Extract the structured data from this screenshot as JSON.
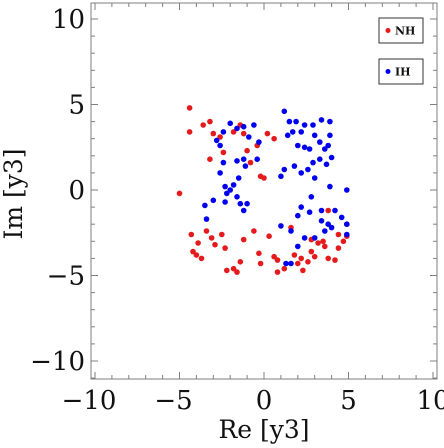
{
  "chart_data": {
    "type": "scatter",
    "xlabel": "Re [y3]",
    "ylabel": "Im [y3]",
    "xlim": [
      -10,
      10
    ],
    "ylim": [
      -11,
      11
    ],
    "xticks": [
      -10,
      -5,
      0,
      5,
      10
    ],
    "yticks": [
      -10,
      -5,
      0,
      5,
      10
    ],
    "xtick_labels": [
      "−10",
      "−5",
      "0",
      "5",
      "10"
    ],
    "ytick_labels": [
      "−10",
      "−5",
      "0",
      "5",
      "10"
    ],
    "grid": false,
    "legend_placement": "top-right",
    "series": [
      {
        "name": "NH",
        "color": "#e41a1c",
        "points": [
          [
            -4.4,
            4.8
          ],
          [
            -4.4,
            3.4
          ],
          [
            -3.6,
            3.8
          ],
          [
            -3.2,
            4.0
          ],
          [
            -3.0,
            3.3
          ],
          [
            -3.2,
            1.8
          ],
          [
            -2.6,
            3.1
          ],
          [
            -2.4,
            2.2
          ],
          [
            -1.8,
            3.4
          ],
          [
            -1.4,
            3.8
          ],
          [
            -1.2,
            3.3
          ],
          [
            -1.0,
            2.3
          ],
          [
            -0.8,
            1.6
          ],
          [
            -0.4,
            2.6
          ],
          [
            -0.2,
            0.8
          ],
          [
            0.0,
            0.7
          ],
          [
            0.6,
            3.0
          ],
          [
            0.2,
            3.3
          ],
          [
            -5.0,
            -0.2
          ],
          [
            -4.3,
            -2.6
          ],
          [
            -3.9,
            -3.1
          ],
          [
            -4.2,
            -3.6
          ],
          [
            -4.0,
            -3.8
          ],
          [
            -3.7,
            -4.0
          ],
          [
            -3.4,
            -2.4
          ],
          [
            -3.1,
            -2.8
          ],
          [
            -2.9,
            -3.2
          ],
          [
            -2.5,
            -2.6
          ],
          [
            -2.3,
            -3.4
          ],
          [
            -2.2,
            -4.7
          ],
          [
            -1.8,
            -4.6
          ],
          [
            -1.6,
            -4.8
          ],
          [
            -1.4,
            -4.2
          ],
          [
            -1.2,
            -2.9
          ],
          [
            -0.6,
            -2.4
          ],
          [
            -0.3,
            -3.7
          ],
          [
            -0.2,
            -4.3
          ],
          [
            0.3,
            -2.7
          ],
          [
            0.6,
            -3.9
          ],
          [
            0.8,
            -4.1
          ],
          [
            0.8,
            -4.8
          ],
          [
            1.2,
            -4.6
          ],
          [
            1.6,
            -2.2
          ],
          [
            1.8,
            -3.8
          ],
          [
            2.0,
            -4.3
          ],
          [
            2.2,
            -4.0
          ],
          [
            2.3,
            -4.7
          ],
          [
            2.6,
            -4.2
          ],
          [
            2.8,
            -3.6
          ],
          [
            3.0,
            -3.9
          ],
          [
            3.2,
            -3.1
          ],
          [
            3.5,
            -3.0
          ],
          [
            3.6,
            -3.3
          ],
          [
            3.8,
            -4.0
          ],
          [
            4.2,
            -4.1
          ],
          [
            4.4,
            -3.4
          ],
          [
            4.4,
            -2.6
          ],
          [
            4.9,
            -2.0
          ],
          [
            4.9,
            -2.7
          ],
          [
            3.8,
            -1.2
          ],
          [
            2.8,
            -2.9
          ],
          [
            4.7,
            -3.0
          ]
        ]
      },
      {
        "name": "IH",
        "color": "#0000ee",
        "points": [
          [
            -2.8,
            2.9
          ],
          [
            -2.6,
            2.6
          ],
          [
            -2.4,
            3.4
          ],
          [
            -2.0,
            3.9
          ],
          [
            -1.6,
            3.6
          ],
          [
            -1.2,
            3.7
          ],
          [
            -0.6,
            3.8
          ],
          [
            -0.9,
            3.1
          ],
          [
            -0.3,
            2.8
          ],
          [
            -0.4,
            1.8
          ],
          [
            -1.2,
            1.8
          ],
          [
            -1.1,
            1.4
          ],
          [
            -1.6,
            1.7
          ],
          [
            -2.4,
            1.6
          ],
          [
            -2.6,
            1.0
          ],
          [
            -2.3,
            0.2
          ],
          [
            -2.0,
            0.0
          ],
          [
            -1.8,
            0.3
          ],
          [
            -1.5,
            0.7
          ],
          [
            -1.6,
            -0.4
          ],
          [
            -1.4,
            -0.8
          ],
          [
            -1.2,
            -1.2
          ],
          [
            -1.0,
            -0.8
          ],
          [
            -2.2,
            -0.2
          ],
          [
            -2.3,
            -0.7
          ],
          [
            -3.0,
            -0.6
          ],
          [
            -3.4,
            -1.7
          ],
          [
            -3.5,
            -0.9
          ],
          [
            1.2,
            4.6
          ],
          [
            1.5,
            4.0
          ],
          [
            1.9,
            4.0
          ],
          [
            2.4,
            3.8
          ],
          [
            2.9,
            3.8
          ],
          [
            3.4,
            4.1
          ],
          [
            3.9,
            4.0
          ],
          [
            1.4,
            3.2
          ],
          [
            1.7,
            3.4
          ],
          [
            2.2,
            3.4
          ],
          [
            2.0,
            2.6
          ],
          [
            2.4,
            2.5
          ],
          [
            2.7,
            2.4
          ],
          [
            3.0,
            3.2
          ],
          [
            3.3,
            2.8
          ],
          [
            3.6,
            2.4
          ],
          [
            3.8,
            2.6
          ],
          [
            3.9,
            3.2
          ],
          [
            4.0,
            1.9
          ],
          [
            3.7,
            1.5
          ],
          [
            3.3,
            1.8
          ],
          [
            2.9,
            1.6
          ],
          [
            2.6,
            1.2
          ],
          [
            2.2,
            1.0
          ],
          [
            1.8,
            1.4
          ],
          [
            1.2,
            1.2
          ],
          [
            1.0,
            0.8
          ],
          [
            3.0,
            0.7
          ],
          [
            3.9,
            0.2
          ],
          [
            4.9,
            0.0
          ],
          [
            2.8,
            -0.4
          ],
          [
            4.6,
            -1.6
          ],
          [
            4.9,
            -2.0
          ],
          [
            4.9,
            -2.6
          ],
          [
            4.0,
            -2.2
          ],
          [
            3.4,
            -1.8
          ],
          [
            2.2,
            -1.0
          ],
          [
            2.0,
            -1.5
          ],
          [
            1.6,
            -2.4
          ],
          [
            1.0,
            -2.1
          ],
          [
            2.4,
            -2.8
          ],
          [
            2.0,
            -3.3
          ],
          [
            3.0,
            -2.8
          ],
          [
            3.6,
            -2.4
          ],
          [
            1.6,
            -4.3
          ],
          [
            1.3,
            -4.3
          ],
          [
            3.4,
            -1.2
          ],
          [
            2.7,
            -1.3
          ],
          [
            3.8,
            -2.0
          ],
          [
            4.2,
            -1.2
          ]
        ]
      }
    ]
  }
}
